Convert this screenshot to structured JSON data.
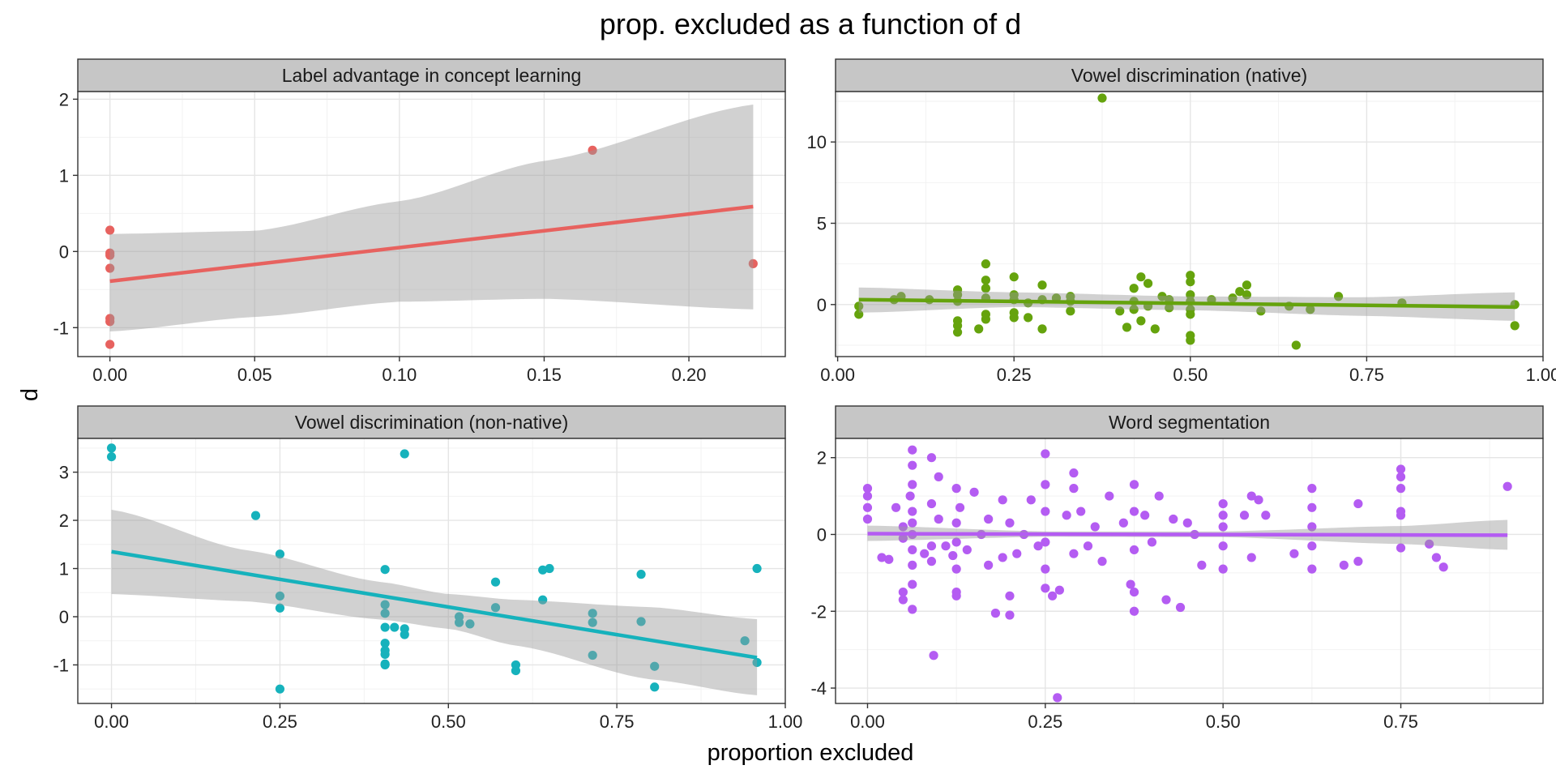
{
  "figure": {
    "title": "prop. excluded as a function of d",
    "xlabel": "proportion excluded",
    "ylabel": "d"
  },
  "chart_data": [
    {
      "type": "scatter",
      "title": "Label advantage in concept learning",
      "color": "#E7625F",
      "xlim": [
        -0.0111,
        0.2333
      ],
      "ylim": [
        -1.38,
        2.1
      ],
      "xticks": [
        0,
        0.05,
        0.1,
        0.15,
        0.2
      ],
      "xtick_labels": [
        "0.00",
        "0.05",
        "0.10",
        "0.15",
        "0.20"
      ],
      "yticks": [
        -1,
        0,
        1,
        2
      ],
      "ytick_labels": [
        "-1",
        "0",
        "1",
        "2"
      ],
      "points": [
        [
          0,
          0.28
        ],
        [
          0,
          -0.02
        ],
        [
          0,
          -0.05
        ],
        [
          0,
          -0.22
        ],
        [
          0,
          -0.88
        ],
        [
          0,
          -0.92
        ],
        [
          0,
          -1.22
        ],
        [
          0.1667,
          1.33
        ],
        [
          0.2222,
          -0.16
        ]
      ],
      "fit": {
        "x0": 0,
        "x1": 0.2222,
        "y0": -0.39,
        "y1": 0.59
      },
      "band": [
        [
          0,
          -1.05,
          0.23
        ],
        [
          0.05,
          -0.86,
          0.27
        ],
        [
          0.1,
          -0.66,
          0.66
        ],
        [
          0.15,
          -0.62,
          1.19
        ],
        [
          0.2222,
          -0.76,
          1.93
        ]
      ]
    },
    {
      "type": "scatter",
      "title": "Vowel discrimination (native)",
      "color": "#65A30D",
      "xlim": [
        -0.003,
        1.0
      ],
      "ylim": [
        -3.2,
        13.1
      ],
      "xticks": [
        0,
        0.25,
        0.5,
        0.75,
        1.0
      ],
      "xtick_labels": [
        "0.00",
        "0.25",
        "0.50",
        "0.75",
        "1.00"
      ],
      "yticks": [
        0,
        5,
        10
      ],
      "ytick_labels": [
        "0",
        "5",
        "10"
      ],
      "points": [
        [
          0.03,
          -0.6
        ],
        [
          0.03,
          -0.1
        ],
        [
          0.08,
          0.3
        ],
        [
          0.09,
          0.5
        ],
        [
          0.13,
          0.3
        ],
        [
          0.17,
          0.9
        ],
        [
          0.17,
          0.6
        ],
        [
          0.17,
          0.2
        ],
        [
          0.17,
          -1.0
        ],
        [
          0.17,
          -1.3
        ],
        [
          0.17,
          -1.7
        ],
        [
          0.2,
          -1.5
        ],
        [
          0.21,
          2.5
        ],
        [
          0.21,
          1.5
        ],
        [
          0.21,
          1.0
        ],
        [
          0.21,
          0.4
        ],
        [
          0.21,
          -0.6
        ],
        [
          0.21,
          -0.9
        ],
        [
          0.25,
          1.7
        ],
        [
          0.25,
          0.6
        ],
        [
          0.25,
          0.3
        ],
        [
          0.25,
          -0.5
        ],
        [
          0.25,
          -0.8
        ],
        [
          0.27,
          -0.8
        ],
        [
          0.27,
          0.1
        ],
        [
          0.29,
          1.2
        ],
        [
          0.29,
          0.3
        ],
        [
          0.29,
          -1.5
        ],
        [
          0.31,
          0.4
        ],
        [
          0.33,
          0.2
        ],
        [
          0.33,
          -0.4
        ],
        [
          0.33,
          0.5
        ],
        [
          0.375,
          12.7
        ],
        [
          0.4,
          -0.4
        ],
        [
          0.41,
          -1.4
        ],
        [
          0.42,
          1.0
        ],
        [
          0.42,
          -0.3
        ],
        [
          0.42,
          0.2
        ],
        [
          0.43,
          1.7
        ],
        [
          0.43,
          -1.0
        ],
        [
          0.44,
          1.3
        ],
        [
          0.44,
          -0.1
        ],
        [
          0.45,
          -1.5
        ],
        [
          0.46,
          0.5
        ],
        [
          0.47,
          0.3
        ],
        [
          0.47,
          -0.2
        ],
        [
          0.5,
          1.8
        ],
        [
          0.5,
          1.4
        ],
        [
          0.5,
          0.6
        ],
        [
          0.5,
          0.2
        ],
        [
          0.5,
          -0.3
        ],
        [
          0.5,
          -0.6
        ],
        [
          0.5,
          -1.9
        ],
        [
          0.5,
          -2.2
        ],
        [
          0.53,
          0.3
        ],
        [
          0.56,
          0.4
        ],
        [
          0.57,
          0.8
        ],
        [
          0.58,
          1.2
        ],
        [
          0.58,
          0.6
        ],
        [
          0.6,
          -0.4
        ],
        [
          0.64,
          -0.1
        ],
        [
          0.65,
          -2.5
        ],
        [
          0.67,
          -0.3
        ],
        [
          0.71,
          0.5
        ],
        [
          0.8,
          0.1
        ],
        [
          0.96,
          0.0
        ],
        [
          0.96,
          -1.3
        ]
      ],
      "fit": {
        "x0": 0.03,
        "x1": 0.96,
        "y0": 0.3,
        "y1": -0.15
      },
      "band": [
        [
          0.03,
          -0.5,
          1.05
        ],
        [
          0.25,
          -0.15,
          0.75
        ],
        [
          0.5,
          -0.35,
          0.5
        ],
        [
          0.75,
          -0.7,
          0.45
        ],
        [
          0.96,
          -1.0,
          0.75
        ]
      ]
    },
    {
      "type": "scatter",
      "title": "Vowel discrimination (non-native)",
      "color": "#16B2BC",
      "xlim": [
        -0.05,
        1.0
      ],
      "ylim": [
        -1.8,
        3.7
      ],
      "xticks": [
        0,
        0.25,
        0.5,
        0.75,
        1.0
      ],
      "xtick_labels": [
        "0.00",
        "0.25",
        "0.50",
        "0.75",
        "1.00"
      ],
      "yticks": [
        -1,
        0,
        1,
        2,
        3
      ],
      "ytick_labels": [
        "-1",
        "0",
        "1",
        "2",
        "3"
      ],
      "points": [
        [
          0,
          3.5
        ],
        [
          0,
          3.32
        ],
        [
          0.214,
          2.1
        ],
        [
          0.25,
          1.3
        ],
        [
          0.25,
          0.43
        ],
        [
          0.25,
          0.18
        ],
        [
          0.25,
          -1.5
        ],
        [
          0.406,
          0.98
        ],
        [
          0.406,
          0.25
        ],
        [
          0.406,
          0.07
        ],
        [
          0.406,
          -0.22
        ],
        [
          0.406,
          -0.55
        ],
        [
          0.406,
          -0.7
        ],
        [
          0.406,
          -0.78
        ],
        [
          0.406,
          -0.98
        ],
        [
          0.406,
          -1.0
        ],
        [
          0.42,
          -0.22
        ],
        [
          0.435,
          3.38
        ],
        [
          0.435,
          -0.25
        ],
        [
          0.435,
          -0.37
        ],
        [
          0.516,
          0.0
        ],
        [
          0.516,
          -0.12
        ],
        [
          0.532,
          -0.15
        ],
        [
          0.57,
          0.72
        ],
        [
          0.57,
          0.19
        ],
        [
          0.64,
          0.35
        ],
        [
          0.64,
          0.97
        ],
        [
          0.65,
          1.0
        ],
        [
          0.6,
          -1.0
        ],
        [
          0.6,
          -1.12
        ],
        [
          0.714,
          0.07
        ],
        [
          0.714,
          -0.12
        ],
        [
          0.714,
          -0.8
        ],
        [
          0.786,
          0.88
        ],
        [
          0.786,
          -0.1
        ],
        [
          0.806,
          -1.03
        ],
        [
          0.806,
          -1.46
        ],
        [
          0.94,
          -0.5
        ],
        [
          0.958,
          -0.95
        ],
        [
          0.958,
          1.0
        ]
      ],
      "fit": {
        "x0": 0,
        "x1": 0.958,
        "y0": 1.35,
        "y1": -0.85
      },
      "band": [
        [
          0,
          0.47,
          2.22
        ],
        [
          0.2,
          0.32,
          1.38
        ],
        [
          0.4,
          -0.06,
          0.72
        ],
        [
          0.5,
          -0.25,
          0.47
        ],
        [
          0.6,
          -0.6,
          0.35
        ],
        [
          0.8,
          -1.3,
          0.2
        ],
        [
          0.958,
          -1.63,
          -0.05
        ]
      ]
    },
    {
      "type": "scatter",
      "title": "Word segmentation",
      "color": "#B45CF2",
      "xlim": [
        -0.045,
        0.95
      ],
      "ylim": [
        -4.4,
        2.5
      ],
      "xticks": [
        0,
        0.25,
        0.5,
        0.75
      ],
      "xtick_labels": [
        "0.00",
        "0.25",
        "0.50",
        "0.75"
      ],
      "yticks": [
        -4,
        -2,
        0,
        2
      ],
      "ytick_labels": [
        "-4",
        "-2",
        "0",
        "2"
      ],
      "points": [
        [
          0,
          1.2
        ],
        [
          0,
          1.0
        ],
        [
          0,
          0.7
        ],
        [
          0,
          0.4
        ],
        [
          0.02,
          -0.6
        ],
        [
          0.03,
          -0.65
        ],
        [
          0.04,
          0.7
        ],
        [
          0.05,
          0.2
        ],
        [
          0.05,
          -0.1
        ],
        [
          0.06,
          1.0
        ],
        [
          0.063,
          2.2
        ],
        [
          0.063,
          1.8
        ],
        [
          0.063,
          1.3
        ],
        [
          0.063,
          0.6
        ],
        [
          0.063,
          0.3
        ],
        [
          0.063,
          0.0
        ],
        [
          0.063,
          -0.4
        ],
        [
          0.063,
          -0.8
        ],
        [
          0.063,
          -1.3
        ],
        [
          0.063,
          -1.95
        ],
        [
          0.05,
          -1.5
        ],
        [
          0.05,
          -1.7
        ],
        [
          0.08,
          -0.5
        ],
        [
          0.09,
          2.0
        ],
        [
          0.09,
          0.8
        ],
        [
          0.09,
          -0.3
        ],
        [
          0.09,
          -0.7
        ],
        [
          0.093,
          -3.15
        ],
        [
          0.1,
          1.5
        ],
        [
          0.1,
          0.4
        ],
        [
          0.11,
          -0.3
        ],
        [
          0.12,
          -0.55
        ],
        [
          0.125,
          1.2
        ],
        [
          0.125,
          0.3
        ],
        [
          0.125,
          -0.2
        ],
        [
          0.125,
          -0.9
        ],
        [
          0.125,
          -1.5
        ],
        [
          0.125,
          -1.6
        ],
        [
          0.13,
          0.7
        ],
        [
          0.14,
          -0.4
        ],
        [
          0.15,
          1.1
        ],
        [
          0.16,
          0.0
        ],
        [
          0.17,
          0.4
        ],
        [
          0.17,
          -0.8
        ],
        [
          0.18,
          -2.05
        ],
        [
          0.19,
          0.9
        ],
        [
          0.19,
          -0.6
        ],
        [
          0.2,
          0.3
        ],
        [
          0.2,
          -2.1
        ],
        [
          0.2,
          -1.6
        ],
        [
          0.21,
          -0.5
        ],
        [
          0.22,
          0.0
        ],
        [
          0.23,
          0.9
        ],
        [
          0.24,
          -0.3
        ],
        [
          0.25,
          2.1
        ],
        [
          0.25,
          1.3
        ],
        [
          0.25,
          0.6
        ],
        [
          0.25,
          -0.2
        ],
        [
          0.25,
          -0.9
        ],
        [
          0.25,
          -1.4
        ],
        [
          0.26,
          -1.6
        ],
        [
          0.267,
          -4.25
        ],
        [
          0.27,
          -1.45
        ],
        [
          0.28,
          0.5
        ],
        [
          0.29,
          1.6
        ],
        [
          0.29,
          1.2
        ],
        [
          0.29,
          -0.5
        ],
        [
          0.3,
          0.6
        ],
        [
          0.31,
          -0.3
        ],
        [
          0.32,
          0.2
        ],
        [
          0.33,
          -0.7
        ],
        [
          0.34,
          1.0
        ],
        [
          0.36,
          0.3
        ],
        [
          0.37,
          -1.3
        ],
        [
          0.375,
          1.3
        ],
        [
          0.375,
          0.6
        ],
        [
          0.375,
          -0.4
        ],
        [
          0.375,
          -1.5
        ],
        [
          0.375,
          -2.0
        ],
        [
          0.39,
          0.5
        ],
        [
          0.4,
          -0.2
        ],
        [
          0.41,
          1.0
        ],
        [
          0.42,
          -1.7
        ],
        [
          0.43,
          0.4
        ],
        [
          0.44,
          -1.9
        ],
        [
          0.45,
          0.3
        ],
        [
          0.46,
          0.0
        ],
        [
          0.47,
          -0.8
        ],
        [
          0.5,
          0.8
        ],
        [
          0.5,
          0.5
        ],
        [
          0.5,
          0.2
        ],
        [
          0.5,
          -0.3
        ],
        [
          0.5,
          -0.9
        ],
        [
          0.53,
          0.5
        ],
        [
          0.54,
          1.0
        ],
        [
          0.54,
          -0.6
        ],
        [
          0.55,
          0.9
        ],
        [
          0.56,
          0.5
        ],
        [
          0.6,
          -0.5
        ],
        [
          0.625,
          1.2
        ],
        [
          0.625,
          0.7
        ],
        [
          0.625,
          0.2
        ],
        [
          0.625,
          -0.3
        ],
        [
          0.625,
          -0.9
        ],
        [
          0.67,
          -0.8
        ],
        [
          0.69,
          0.8
        ],
        [
          0.69,
          -0.7
        ],
        [
          0.75,
          1.7
        ],
        [
          0.75,
          1.5
        ],
        [
          0.75,
          1.2
        ],
        [
          0.75,
          0.6
        ],
        [
          0.75,
          0.5
        ],
        [
          0.75,
          -0.35
        ],
        [
          0.79,
          -0.25
        ],
        [
          0.8,
          -0.6
        ],
        [
          0.81,
          -0.85
        ],
        [
          0.9,
          1.25
        ]
      ],
      "fit": {
        "x0": 0,
        "x1": 0.9,
        "y0": 0.02,
        "y1": -0.02
      },
      "band": [
        [
          0,
          -0.17,
          0.23
        ],
        [
          0.25,
          -0.06,
          0.08
        ],
        [
          0.5,
          -0.07,
          0.08
        ],
        [
          0.75,
          -0.25,
          0.22
        ],
        [
          0.9,
          -0.4,
          0.38
        ]
      ]
    }
  ]
}
